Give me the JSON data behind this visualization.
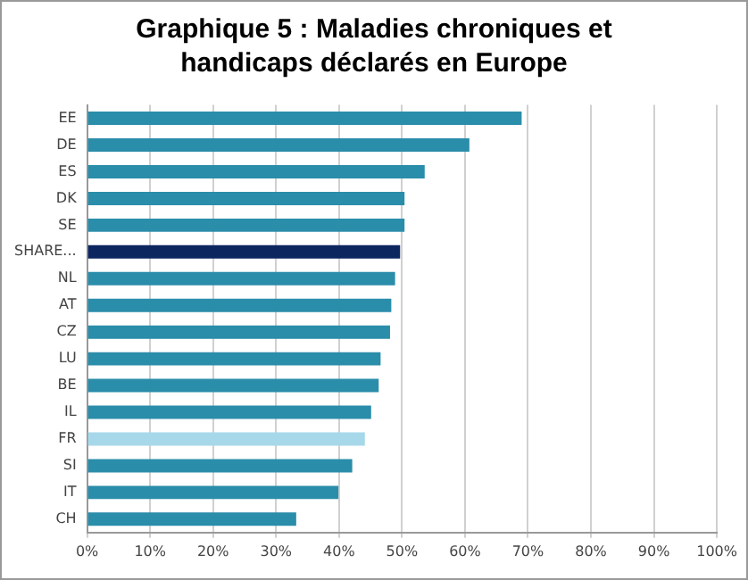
{
  "chart_data": {
    "type": "bar",
    "orientation": "horizontal",
    "title": "Graphique 5 : Maladies chroniques et handicaps déclarés en Europe",
    "categories": [
      "EE",
      "DE",
      "ES",
      "DK",
      "SE",
      "SHARE...",
      "NL",
      "AT",
      "CZ",
      "LU",
      "BE",
      "IL",
      "FR",
      "SI",
      "IT",
      "CH"
    ],
    "values": [
      69.0,
      60.7,
      53.6,
      50.4,
      50.4,
      49.7,
      48.9,
      48.3,
      48.1,
      46.6,
      46.3,
      45.1,
      44.1,
      42.1,
      39.9,
      33.2
    ],
    "colors": [
      "#2a8daa",
      "#2a8daa",
      "#2a8daa",
      "#2a8daa",
      "#2a8daa",
      "#0c2660",
      "#2a8daa",
      "#2a8daa",
      "#2a8daa",
      "#2a8daa",
      "#2a8daa",
      "#2a8daa",
      "#a6d8ea",
      "#2a8daa",
      "#2a8daa",
      "#2a8daa"
    ],
    "xlim": [
      0,
      100
    ],
    "xticks": [
      {
        "value": 0,
        "label": "0%"
      },
      {
        "value": 10,
        "label": "10%"
      },
      {
        "value": 20,
        "label": "20%"
      },
      {
        "value": 30,
        "label": "30%"
      },
      {
        "value": 40,
        "label": "40%"
      },
      {
        "value": 50,
        "label": "50%"
      },
      {
        "value": 60,
        "label": "60%"
      },
      {
        "value": 70,
        "label": "70%"
      },
      {
        "value": 80,
        "label": "80%"
      },
      {
        "value": 90,
        "label": "90%"
      },
      {
        "value": 100,
        "label": "100%"
      }
    ],
    "grid": "x",
    "legend": false
  }
}
